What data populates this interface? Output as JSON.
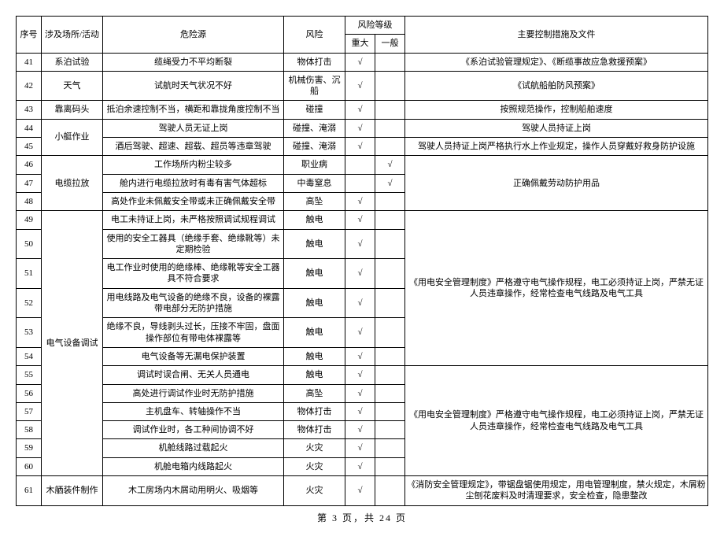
{
  "headers": {
    "seq": "序号",
    "place": "涉及场所/活动",
    "hazard": "危险源",
    "risk": "风险",
    "riskLevel": "风险等级",
    "major": "重大",
    "minor": "一般",
    "ctrl": "主要控制措施及文件"
  },
  "pager": "第 3 页，共 24 页",
  "tick": "√",
  "rows": [
    {
      "seq": "41",
      "place": "系泊试验",
      "hazard": "缆绳受力不平均断裂",
      "risk": "物体打击",
      "major": true,
      "minor": false,
      "ctrl": "《系泊试验管理规定》、《断缆事故应急救援预案》"
    },
    {
      "seq": "42",
      "place": "天气",
      "hazard": "试航时天气状况不好",
      "risk": "机械伤害、沉船",
      "major": true,
      "minor": false,
      "ctrl": "《试航船舶防风预案》"
    },
    {
      "seq": "43",
      "place": "靠离码头",
      "hazard": "抵泊余速控制不当，横距和靠拢角度控制不当",
      "risk": "碰撞",
      "major": true,
      "minor": false,
      "ctrl": "按照规范操作，控制船舶速度"
    },
    {
      "seq": "44",
      "place": "",
      "hazard": "驾驶人员无证上岗",
      "risk": "碰撞、淹溺",
      "major": true,
      "minor": false,
      "ctrl": "驾驶人员持证上岗"
    },
    {
      "seq": "45",
      "place": "",
      "hazard": "酒后驾驶、超速、超载、超员等违章驾驶",
      "risk": "碰撞、淹溺",
      "major": true,
      "minor": false,
      "ctrl": "驾驶人员持证上岗严格执行水上作业规定，操作人员穿戴好救身防护设施"
    },
    {
      "seq": "46",
      "place": "",
      "hazard": "工作场所内粉尘较多",
      "risk": "职业病",
      "major": false,
      "minor": true,
      "ctrl": ""
    },
    {
      "seq": "47",
      "place": "",
      "hazard": "舱内进行电缆拉放时有毒有害气体超标",
      "risk": "中毒窒息",
      "major": false,
      "minor": true,
      "ctrl": ""
    },
    {
      "seq": "48",
      "place": "",
      "hazard": "高处作业未佩戴安全带或未正确佩戴安全带",
      "risk": "高坠",
      "major": true,
      "minor": false,
      "ctrl": ""
    },
    {
      "seq": "49",
      "place": "",
      "hazard": "电工未持证上岗，未严格按照调试规程调试",
      "risk": "触电",
      "major": true,
      "minor": false,
      "ctrl": ""
    },
    {
      "seq": "50",
      "place": "",
      "hazard": "使用的安全工器具（绝缘手套、绝缘靴等）未定期检验",
      "risk": "触电",
      "major": true,
      "minor": false,
      "ctrl": ""
    },
    {
      "seq": "51",
      "place": "",
      "hazard": "电工作业时使用的绝缘棒、绝缘靴等安全工器具不符合要求",
      "risk": "触电",
      "major": true,
      "minor": false,
      "ctrl": ""
    },
    {
      "seq": "52",
      "place": "",
      "hazard": "用电线路及电气设备的绝缘不良，设备的裸露带电部分无防护措施",
      "risk": "触电",
      "major": true,
      "minor": false,
      "ctrl": ""
    },
    {
      "seq": "53",
      "place": "",
      "hazard": "绝缘不良，导线剥头过长，压接不牢固，盘面操作部位有带电体裸露等",
      "risk": "触电",
      "major": true,
      "minor": false,
      "ctrl": ""
    },
    {
      "seq": "54",
      "place": "",
      "hazard": "电气设备等无漏电保护装置",
      "risk": "触电",
      "major": true,
      "minor": false,
      "ctrl": ""
    },
    {
      "seq": "55",
      "place": "",
      "hazard": "调试时误合闸、无关人员通电",
      "risk": "触电",
      "major": true,
      "minor": false,
      "ctrl": ""
    },
    {
      "seq": "56",
      "place": "",
      "hazard": "高处进行调试作业时无防护措施",
      "risk": "高坠",
      "major": true,
      "minor": false,
      "ctrl": ""
    },
    {
      "seq": "57",
      "place": "",
      "hazard": "主机盘车、转轴操作不当",
      "risk": "物体打击",
      "major": true,
      "minor": false,
      "ctrl": ""
    },
    {
      "seq": "58",
      "place": "",
      "hazard": "调试作业时，各工种间协调不好",
      "risk": "物体打击",
      "major": true,
      "minor": false,
      "ctrl": ""
    },
    {
      "seq": "59",
      "place": "",
      "hazard": "机舱线路过载起火",
      "risk": "火灾",
      "major": true,
      "minor": false,
      "ctrl": ""
    },
    {
      "seq": "60",
      "place": "",
      "hazard": "机舱电箱内线路起火",
      "risk": "火灾",
      "major": true,
      "minor": false,
      "ctrl": ""
    },
    {
      "seq": "61",
      "place": "木舾装件制作",
      "hazard": "木工房场内木屑动用明火、吸烟等",
      "risk": "火灾",
      "major": true,
      "minor": false,
      "ctrl": "《消防安全管理规定》，带锯盘锯使用规定，用电管理制度，禁火规定，木屑粉尘刨花废料及时清理要求，安全检查，隐患整改"
    }
  ],
  "groups": {
    "place_small_boat": "小艇作业",
    "place_cable": "电缆拉放",
    "place_elec": "电气设备调试",
    "ctrl_ppe": "正确佩戴劳动防护用品",
    "ctrl_elec1": "《用电安全管理制度》严格遵守电气操作规程，电工必须持证上岗，严禁无证人员违章操作，经常检查电气线路及电气工具",
    "ctrl_elec2": "《用电安全管理制度》严格遵守电气操作规程，电工必须持证上岗，严禁无证人员违章操作，经常检查电气线路及电气工具"
  }
}
